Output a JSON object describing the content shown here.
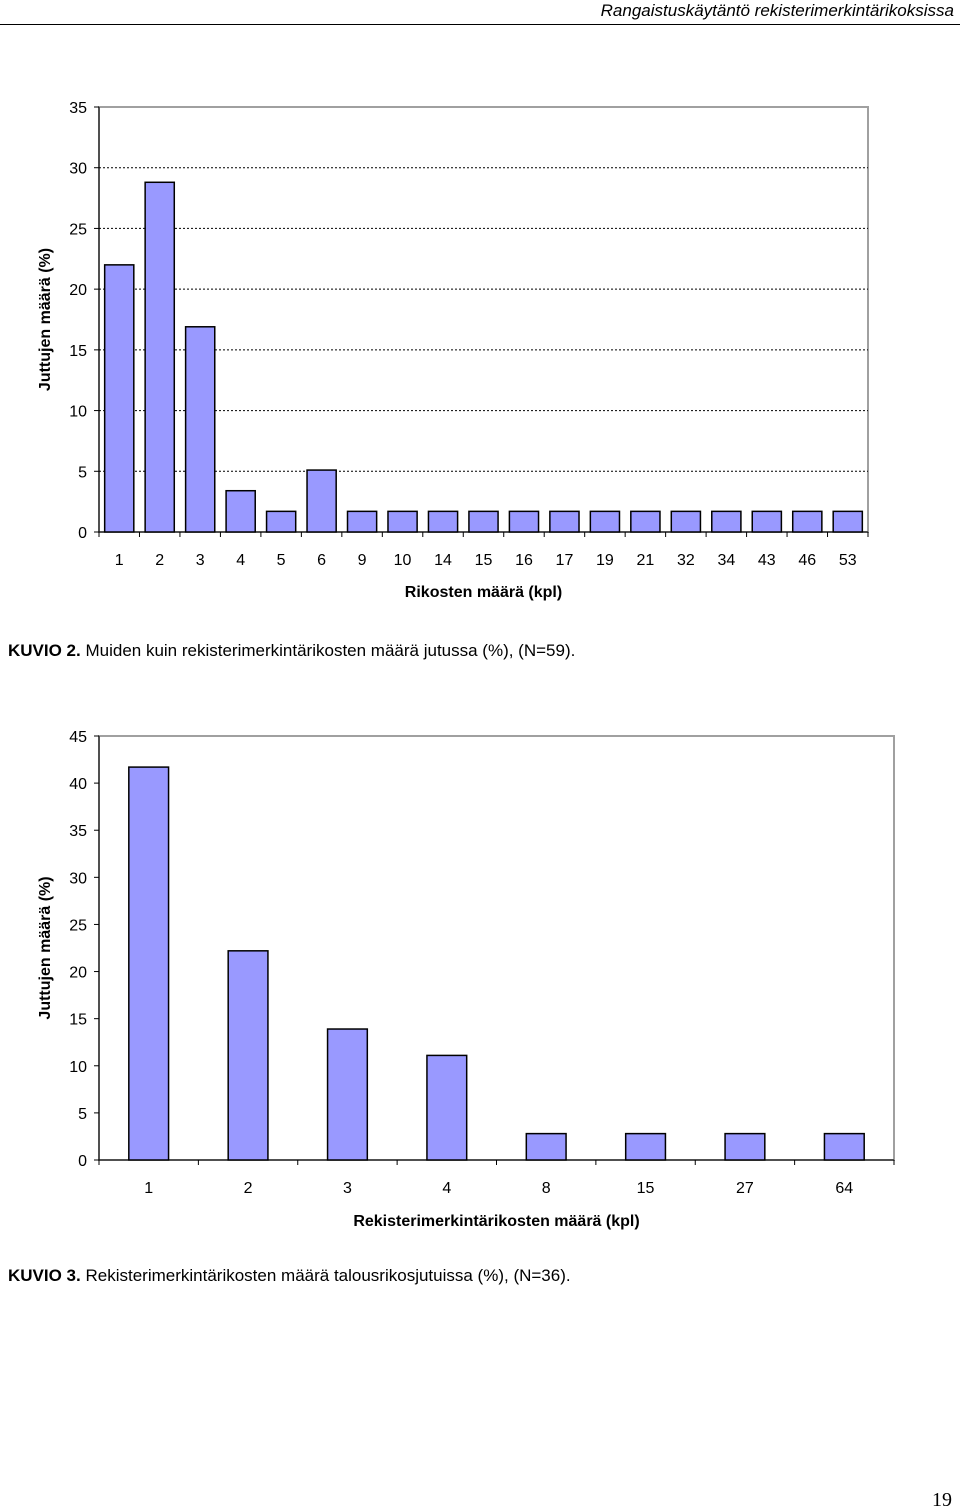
{
  "header": {
    "title": "Rangaistuskäytäntö rekisterimerkintärikoksissa"
  },
  "chart_data": [
    {
      "type": "bar",
      "categories": [
        "1",
        "2",
        "3",
        "4",
        "5",
        "6",
        "9",
        "10",
        "14",
        "15",
        "16",
        "17",
        "19",
        "21",
        "32",
        "34",
        "43",
        "46",
        "53"
      ],
      "values": [
        22.0,
        28.8,
        16.9,
        3.4,
        1.7,
        5.1,
        1.7,
        1.7,
        1.7,
        1.7,
        1.7,
        1.7,
        1.7,
        1.7,
        1.7,
        1.7,
        1.7,
        1.7,
        1.7
      ],
      "ylim": [
        0,
        35
      ],
      "yticks": [
        "0",
        "5",
        "10",
        "15",
        "20",
        "25",
        "30",
        "35"
      ],
      "xlabel": "Rikosten määrä (kpl)",
      "ylabel": "Juttujen määrä (%)",
      "grid": "dashed horizontal",
      "bar_color": "#9999ff"
    },
    {
      "type": "bar",
      "categories": [
        "1",
        "2",
        "3",
        "4",
        "8",
        "15",
        "27",
        "64"
      ],
      "values": [
        41.7,
        22.2,
        13.9,
        11.1,
        2.8,
        2.8,
        2.8,
        2.8
      ],
      "ylim": [
        0,
        45
      ],
      "yticks": [
        "0",
        "5",
        "10",
        "15",
        "20",
        "25",
        "30",
        "35",
        "40",
        "45"
      ],
      "xlabel": "Rekisterimerkintärikosten määrä (kpl)",
      "ylabel": "Juttujen määrä (%)",
      "grid": "none",
      "bar_color": "#9999ff"
    }
  ],
  "captions": [
    {
      "label": "KUVIO 2.",
      "text": " Muiden kuin rekisterimerkintärikosten määrä jutussa (%), (N=59)."
    },
    {
      "label": "KUVIO 3.",
      "text": " Rekisterimerkintärikosten määrä talousrikosjutuissa (%), (N=36)."
    }
  ],
  "page_number": "19"
}
